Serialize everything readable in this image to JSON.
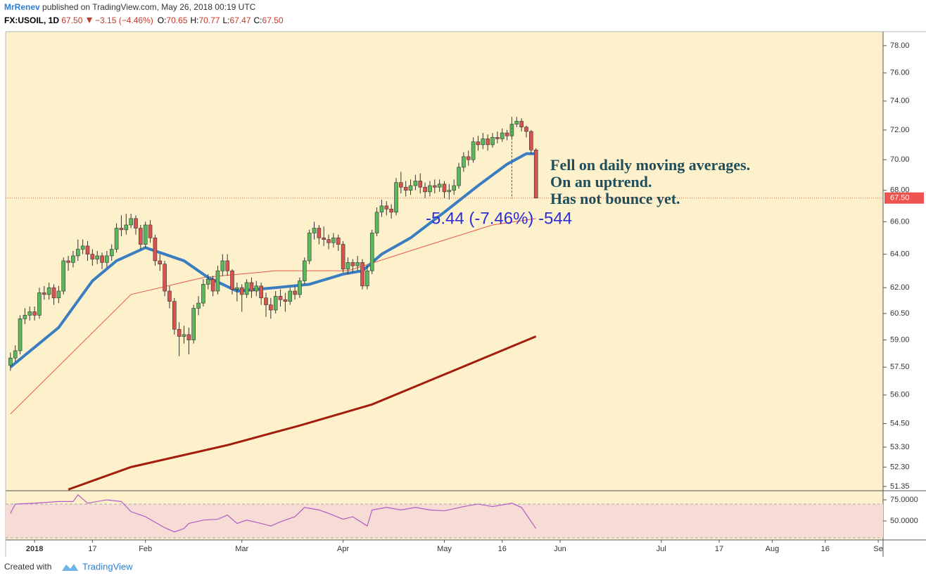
{
  "header": {
    "author": "MrRenev",
    "published": "published on TradingView.com, May 26, 2018 00:19 UTC"
  },
  "footer": {
    "created": "Created with",
    "brand": "TradingView"
  },
  "chart_data": {
    "type": "candlestick",
    "symbol": "FX:USOIL, 1D",
    "last": "67.50",
    "change": "−3.15 (−4.46%)",
    "quote": [
      {
        "key": "O:",
        "value": "70.65"
      },
      {
        "key": "H:",
        "value": "70.77"
      },
      {
        "key": "L:",
        "value": "67.47"
      },
      {
        "key": "C:",
        "value": "67.50"
      }
    ],
    "up_color": "#5cb85c",
    "down_color": "#d9534f",
    "log_scale": true,
    "grid": false,
    "xlim": [
      -1,
      181
    ],
    "xticks": [
      {
        "value": 5,
        "label": "2018"
      },
      {
        "value": 17,
        "label": "17"
      },
      {
        "value": 28,
        "label": "Feb"
      },
      {
        "value": 48,
        "label": "Mar"
      },
      {
        "value": 69,
        "label": "Apr"
      },
      {
        "value": 90,
        "label": "May"
      },
      {
        "value": 102,
        "label": "16"
      },
      {
        "value": 114,
        "label": "Jun"
      },
      {
        "value": 135,
        "label": "Jul"
      },
      {
        "value": 147,
        "label": "17"
      },
      {
        "value": 158,
        "label": "Aug"
      },
      {
        "value": 169,
        "label": "16"
      },
      {
        "value": 180,
        "label": "Se"
      }
    ],
    "ylim": [
      51.14,
      79.04
    ],
    "yticks": [
      {
        "value": 78,
        "label": "78.00"
      },
      {
        "value": 76,
        "label": "76.00"
      },
      {
        "value": 74,
        "label": "74.00"
      },
      {
        "value": 72,
        "label": "72.00"
      },
      {
        "value": 70,
        "label": "70.00"
      },
      {
        "value": 68,
        "label": "68.00"
      },
      {
        "value": 66,
        "label": "66.00"
      },
      {
        "value": 64,
        "label": "64.00"
      },
      {
        "value": 62,
        "label": "62.00"
      },
      {
        "value": 60.5,
        "label": "60.50"
      },
      {
        "value": 59,
        "label": "59.00"
      },
      {
        "value": 57.5,
        "label": "57.50"
      },
      {
        "value": 56,
        "label": "56.00"
      },
      {
        "value": 54.5,
        "label": "54.50"
      },
      {
        "value": 53.3,
        "label": "53.30"
      },
      {
        "value": 52.3,
        "label": "52.30"
      },
      {
        "value": 51.35,
        "label": "51.35"
      }
    ],
    "last_price": {
      "value": 67.5,
      "label": "67.50",
      "color": "#ef5350"
    },
    "ohlc": [
      [
        57.6,
        58.3,
        57.3,
        58.0
      ],
      [
        58.0,
        58.7,
        57.8,
        58.4
      ],
      [
        58.4,
        60.4,
        58.2,
        60.2
      ],
      [
        60.2,
        60.8,
        59.9,
        60.4
      ],
      [
        60.4,
        60.9,
        60.1,
        60.6
      ],
      [
        60.6,
        60.9,
        60.1,
        60.4
      ],
      [
        60.4,
        62.0,
        60.2,
        61.7
      ],
      [
        61.7,
        62.1,
        61.3,
        61.6
      ],
      [
        61.6,
        62.3,
        61.3,
        62.0
      ],
      [
        62.0,
        62.2,
        61.0,
        61.4
      ],
      [
        61.4,
        62.1,
        61.1,
        61.8
      ],
      [
        61.8,
        63.8,
        61.6,
        63.6
      ],
      [
        63.6,
        63.9,
        63.0,
        63.5
      ],
      [
        63.5,
        64.2,
        63.2,
        63.9
      ],
      [
        63.9,
        64.9,
        63.6,
        64.3
      ],
      [
        64.3,
        64.9,
        64.0,
        64.5
      ],
      [
        64.5,
        64.8,
        63.6,
        64.0
      ],
      [
        64.0,
        64.3,
        63.3,
        63.7
      ],
      [
        63.7,
        64.2,
        63.4,
        63.9
      ],
      [
        63.9,
        64.1,
        63.1,
        63.5
      ],
      [
        63.5,
        64.2,
        63.2,
        63.9
      ],
      [
        63.9,
        64.6,
        63.6,
        64.3
      ],
      [
        64.3,
        65.9,
        64.1,
        65.6
      ],
      [
        65.6,
        66.4,
        65.1,
        65.5
      ],
      [
        65.5,
        66.5,
        65.2,
        65.8
      ],
      [
        65.8,
        66.5,
        65.6,
        66.2
      ],
      [
        66.2,
        66.4,
        65.2,
        65.6
      ],
      [
        65.6,
        65.8,
        64.3,
        64.6
      ],
      [
        64.6,
        66.0,
        64.4,
        65.8
      ],
      [
        65.8,
        66.1,
        64.7,
        65.0
      ],
      [
        65.0,
        65.2,
        63.3,
        63.6
      ],
      [
        63.6,
        64.0,
        63.0,
        63.4
      ],
      [
        63.4,
        63.6,
        61.5,
        61.8
      ],
      [
        61.8,
        62.1,
        60.8,
        61.2
      ],
      [
        61.2,
        61.4,
        59.3,
        59.6
      ],
      [
        59.6,
        60.0,
        58.1,
        59.2
      ],
      [
        59.2,
        59.8,
        58.8,
        59.3
      ],
      [
        59.3,
        59.7,
        58.2,
        59.0
      ],
      [
        59.0,
        61.0,
        58.8,
        60.8
      ],
      [
        60.8,
        61.5,
        60.4,
        61.1
      ],
      [
        61.1,
        62.5,
        60.9,
        62.2
      ],
      [
        62.2,
        62.8,
        61.9,
        62.5
      ],
      [
        62.5,
        62.7,
        61.5,
        61.8
      ],
      [
        61.8,
        63.3,
        61.6,
        63.0
      ],
      [
        63.0,
        64.0,
        62.7,
        63.6
      ],
      [
        63.6,
        64.0,
        62.7,
        63.0
      ],
      [
        63.0,
        63.1,
        61.6,
        61.9
      ],
      [
        61.9,
        62.3,
        61.2,
        62.0
      ],
      [
        62.0,
        62.2,
        60.6,
        61.6
      ],
      [
        61.6,
        62.5,
        61.4,
        62.3
      ],
      [
        62.3,
        62.6,
        61.4,
        61.8
      ],
      [
        61.8,
        62.4,
        61.5,
        62.1
      ],
      [
        62.1,
        62.3,
        61.0,
        61.4
      ],
      [
        61.4,
        61.7,
        60.3,
        61.0
      ],
      [
        61.0,
        61.4,
        60.2,
        60.7
      ],
      [
        60.7,
        61.8,
        60.5,
        61.5
      ],
      [
        61.5,
        61.9,
        60.9,
        61.3
      ],
      [
        61.3,
        61.7,
        60.6,
        61.2
      ],
      [
        61.2,
        62.0,
        61.0,
        61.8
      ],
      [
        61.8,
        62.1,
        61.3,
        61.6
      ],
      [
        61.6,
        62.6,
        61.4,
        62.4
      ],
      [
        62.4,
        63.8,
        62.2,
        63.6
      ],
      [
        63.6,
        65.5,
        63.4,
        65.3
      ],
      [
        65.3,
        66.0,
        64.9,
        65.6
      ],
      [
        65.6,
        65.8,
        64.6,
        65.0
      ],
      [
        65.0,
        65.7,
        64.5,
        64.9
      ],
      [
        64.9,
        65.2,
        64.3,
        64.7
      ],
      [
        64.7,
        65.3,
        64.4,
        65.0
      ],
      [
        65.0,
        65.2,
        64.2,
        64.6
      ],
      [
        64.6,
        64.8,
        62.9,
        63.1
      ],
      [
        63.1,
        63.8,
        62.8,
        63.5
      ],
      [
        63.5,
        63.7,
        62.9,
        63.3
      ],
      [
        63.3,
        63.9,
        63.0,
        63.5
      ],
      [
        63.5,
        63.7,
        61.9,
        62.1
      ],
      [
        62.1,
        63.3,
        61.9,
        63.0
      ],
      [
        63.0,
        65.5,
        62.8,
        65.3
      ],
      [
        65.3,
        66.9,
        65.1,
        66.6
      ],
      [
        66.6,
        67.4,
        66.3,
        67.0
      ],
      [
        67.0,
        67.3,
        66.4,
        66.8
      ],
      [
        66.8,
        67.1,
        66.2,
        66.6
      ],
      [
        66.6,
        68.8,
        66.4,
        68.5
      ],
      [
        68.5,
        69.2,
        67.8,
        68.2
      ],
      [
        68.2,
        68.6,
        67.6,
        68.0
      ],
      [
        68.0,
        68.7,
        67.7,
        68.3
      ],
      [
        68.3,
        69.0,
        68.0,
        68.6
      ],
      [
        68.6,
        69.1,
        67.8,
        68.2
      ],
      [
        68.2,
        68.5,
        67.5,
        67.9
      ],
      [
        67.9,
        68.6,
        67.6,
        68.3
      ],
      [
        68.3,
        68.7,
        67.8,
        68.2
      ],
      [
        68.2,
        68.7,
        67.9,
        68.4
      ],
      [
        68.4,
        68.6,
        67.5,
        67.9
      ],
      [
        67.9,
        68.4,
        67.4,
        68.0
      ],
      [
        68.0,
        68.7,
        67.7,
        68.3
      ],
      [
        68.3,
        69.8,
        68.1,
        69.5
      ],
      [
        69.5,
        70.5,
        69.2,
        70.2
      ],
      [
        70.2,
        70.6,
        69.6,
        70.0
      ],
      [
        70.0,
        71.5,
        69.8,
        71.2
      ],
      [
        71.2,
        71.6,
        70.6,
        71.0
      ],
      [
        71.0,
        71.8,
        70.7,
        71.4
      ],
      [
        71.4,
        71.7,
        70.6,
        71.0
      ],
      [
        71.0,
        71.8,
        70.8,
        71.5
      ],
      [
        71.5,
        71.9,
        71.1,
        71.4
      ],
      [
        71.4,
        72.1,
        71.2,
        71.8
      ],
      [
        71.8,
        72.0,
        71.3,
        71.6
      ],
      [
        71.6,
        72.9,
        71.4,
        72.4
      ],
      [
        72.4,
        72.9,
        72.2,
        72.6
      ],
      [
        72.6,
        72.8,
        71.9,
        72.2
      ],
      [
        72.2,
        72.3,
        71.5,
        71.9
      ],
      [
        71.9,
        72.0,
        70.4,
        70.65
      ],
      [
        70.65,
        70.77,
        67.47,
        67.5
      ]
    ],
    "lines": [
      {
        "color": "#e8584a",
        "width": 1,
        "x": [
          0,
          25,
          40,
          55,
          70,
          85,
          100,
          109
        ],
        "values": [
          55.0,
          61.6,
          62.6,
          63.0,
          63.0,
          64.4,
          65.8,
          66.2
        ]
      },
      {
        "color": "#a31d0c",
        "width": 3,
        "x": [
          12,
          25,
          45,
          60,
          75,
          90,
          109
        ],
        "values": [
          51.2,
          52.3,
          53.4,
          54.4,
          55.5,
          57.1,
          59.2
        ]
      },
      {
        "color": "#3a7dc1",
        "width": 4,
        "x": [
          0,
          10,
          17,
          22,
          28,
          32,
          36,
          41,
          47,
          55,
          62,
          69,
          73,
          77,
          83,
          90,
          97,
          103,
          107,
          109
        ],
        "values": [
          57.5,
          59.7,
          62.4,
          63.6,
          64.4,
          64.0,
          63.6,
          62.6,
          61.8,
          62.0,
          62.2,
          62.8,
          63.0,
          64.0,
          65.0,
          66.6,
          68.3,
          69.7,
          70.4,
          70.4
        ]
      }
    ],
    "annotations": [
      "Fell on daily moving averages.",
      "On an uptrend.",
      "Has not bounce yet."
    ],
    "measure": {
      "label": "-5.44 (-7.46%) -544",
      "x": 104,
      "from": 72.9,
      "to": 67.47
    },
    "rsi": {
      "color": "#b05cc6",
      "ylim": [
        27.5,
        85.8
      ],
      "yticks": [
        {
          "value": 75,
          "label": "75.0000"
        },
        {
          "value": 50,
          "label": "50.0000"
        }
      ],
      "band": [
        30,
        70
      ],
      "x": [
        0,
        1,
        5,
        10,
        13,
        14,
        16,
        20,
        23,
        25,
        28,
        32,
        34,
        36,
        37,
        40,
        43,
        45,
        47,
        49,
        52,
        54,
        56,
        59,
        61,
        64,
        66,
        69,
        71,
        74,
        75,
        78,
        81,
        84,
        87,
        90,
        94,
        97,
        100,
        104,
        106,
        109
      ],
      "values": [
        59,
        70,
        71,
        73,
        73,
        81,
        71,
        75,
        73,
        61,
        55,
        42,
        37,
        41,
        47,
        51,
        52,
        57,
        47,
        51,
        47,
        44,
        49,
        55,
        66,
        63,
        59,
        52,
        55,
        44,
        63,
        66,
        63,
        66,
        63,
        62,
        67,
        70,
        67,
        71,
        66,
        41
      ]
    }
  }
}
